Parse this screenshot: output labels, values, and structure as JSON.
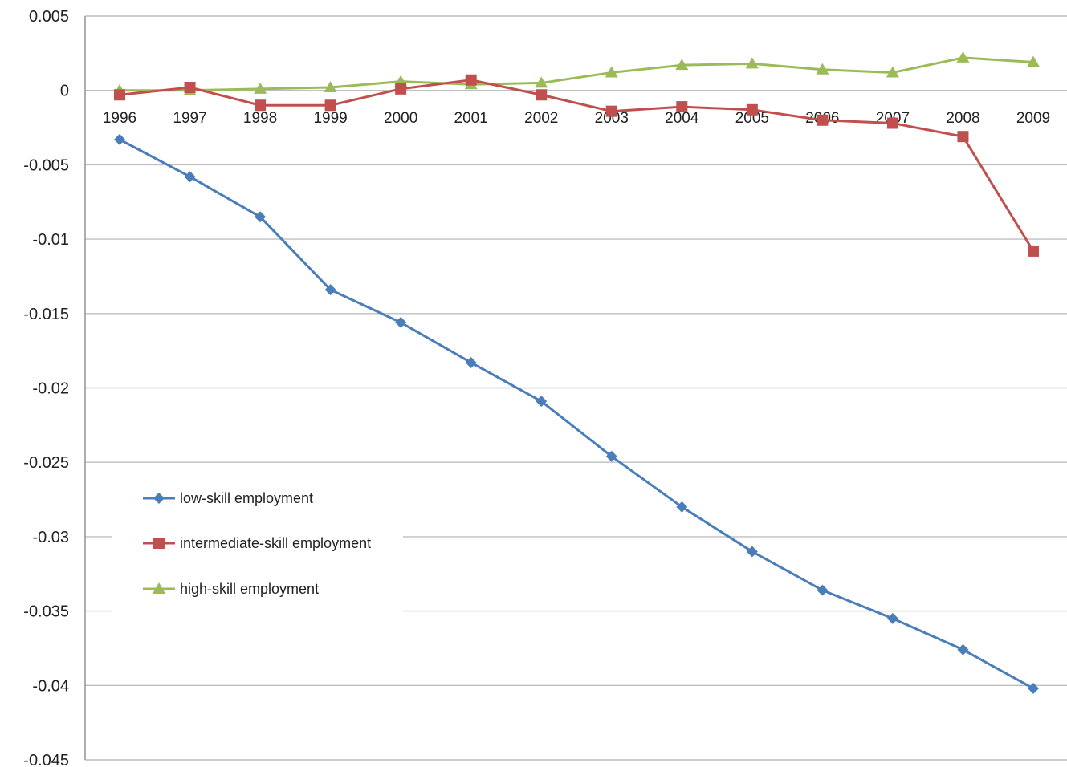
{
  "chart_data": {
    "type": "line",
    "title": "",
    "xlabel": "",
    "ylabel": "",
    "categories": [
      "1996",
      "1997",
      "1998",
      "1999",
      "2000",
      "2001",
      "2002",
      "2003",
      "2004",
      "2005",
      "2006",
      "2007",
      "2008",
      "2009"
    ],
    "ylim": [
      -0.045,
      0.005
    ],
    "yticks": [
      0.005,
      0,
      -0.005,
      -0.01,
      -0.015,
      -0.02,
      -0.025,
      -0.03,
      -0.035,
      -0.04,
      -0.045
    ],
    "ytick_labels": [
      "0.005",
      "0",
      "-0.005",
      "-0.01",
      "-0.015",
      "-0.02",
      "-0.025",
      "-0.03",
      "-0.035",
      "-0.04",
      "-0.045"
    ],
    "grid": true,
    "legend_position": "bottom-left",
    "series": [
      {
        "name": "low-skill employment",
        "color": "#4a7ebb",
        "marker": "diamond",
        "values": [
          -0.0033,
          -0.0058,
          -0.0085,
          -0.0134,
          -0.0156,
          -0.0183,
          -0.0209,
          -0.0246,
          -0.028,
          -0.031,
          -0.0336,
          -0.0355,
          -0.0376,
          -0.0402
        ]
      },
      {
        "name": "intermediate-skill employment",
        "color": "#c0504d",
        "marker": "square",
        "values": [
          -0.0003,
          0.0002,
          -0.001,
          -0.001,
          0.0001,
          0.0007,
          -0.0003,
          -0.0014,
          -0.0011,
          -0.0013,
          -0.002,
          -0.0022,
          -0.0031,
          -0.0108
        ]
      },
      {
        "name": "high-skill employment",
        "color": "#9bbb59",
        "marker": "triangle",
        "values": [
          0.0,
          0.0,
          0.0001,
          0.0002,
          0.0006,
          0.0004,
          0.0005,
          0.0012,
          0.0017,
          0.0018,
          0.0014,
          0.0012,
          0.0022,
          0.0019
        ]
      }
    ]
  }
}
